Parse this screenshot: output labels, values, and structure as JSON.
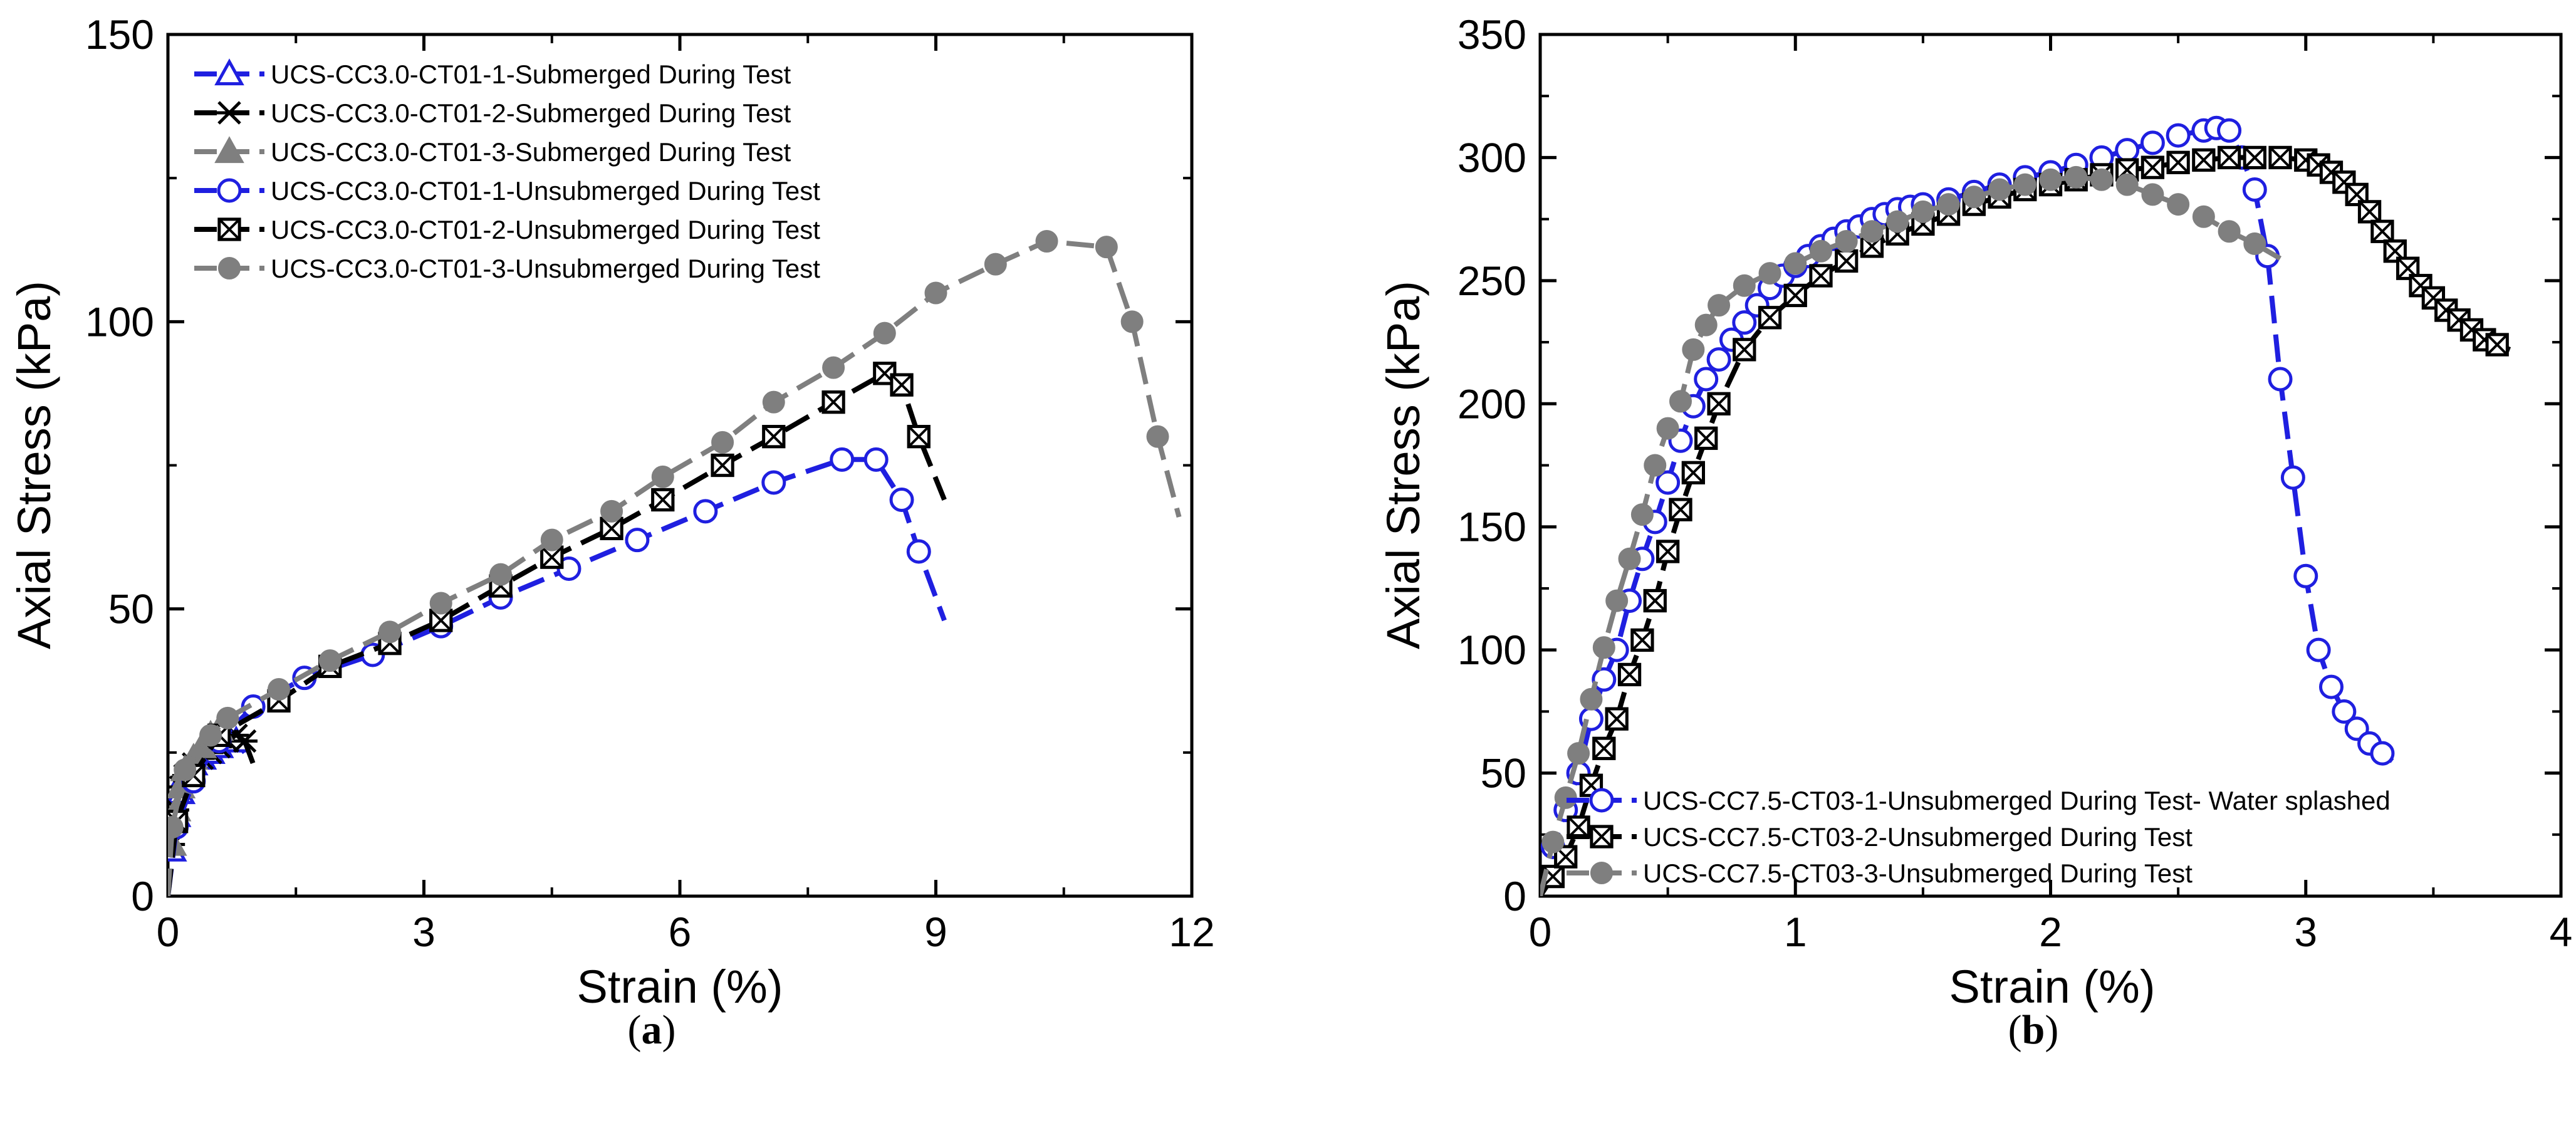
{
  "chart_data": [
    {
      "id": "a",
      "type": "line",
      "caption": "a",
      "xlabel": "Strain (%)",
      "ylabel": "Axial Stress (kPa)",
      "xlim": [
        0,
        12
      ],
      "ylim": [
        0,
        150
      ],
      "xticks": [
        0,
        3,
        6,
        9,
        12
      ],
      "yticks": [
        0,
        50,
        100,
        150
      ],
      "xtick_labels": [
        "0",
        "3",
        "6",
        "9",
        "12"
      ],
      "ytick_labels": [
        "0",
        "50",
        "100",
        "150"
      ],
      "legend_position": "top-left",
      "series": [
        {
          "name": "UCS-CC3.0-CT01-1-Submerged During Test",
          "color": "#1f1fe0",
          "dash": "long",
          "marker": "triangle-open",
          "x": [
            0,
            0.05,
            0.1,
            0.15,
            0.2,
            0.3,
            0.4,
            0.5,
            0.6,
            0.7,
            0.8,
            0.9
          ],
          "y": [
            0,
            8,
            14,
            18,
            21,
            23,
            24,
            25,
            26,
            27,
            27,
            25
          ]
        },
        {
          "name": "UCS-CC3.0-CT01-2-Submerged During Test",
          "color": "#000000",
          "dash": "long",
          "marker": "asterisk",
          "x": [
            0,
            0.05,
            0.1,
            0.15,
            0.2,
            0.3,
            0.4,
            0.5,
            0.6,
            0.7,
            0.8,
            0.9,
            1.0
          ],
          "y": [
            0,
            9,
            15,
            19,
            21,
            23,
            24,
            25,
            26,
            27,
            28,
            27,
            23
          ]
        },
        {
          "name": "UCS-CC3.0-CT01-3-Submerged During Test",
          "color": "#7f7f7f",
          "dash": "long",
          "marker": "triangle-filled",
          "x": [
            0,
            0.05,
            0.1,
            0.15,
            0.2,
            0.3,
            0.4,
            0.5,
            0.6,
            0.7
          ],
          "y": [
            0,
            9,
            15,
            19,
            22,
            24,
            26,
            28,
            29,
            28
          ]
        },
        {
          "name": "UCS-CC3.0-CT01-1-Unsubmerged During Test",
          "color": "#1f1fe0",
          "dash": "long",
          "marker": "circle-open",
          "x": [
            0,
            0.1,
            0.3,
            0.6,
            1.0,
            1.6,
            2.4,
            3.2,
            3.9,
            4.7,
            5.5,
            6.3,
            7.1,
            7.9,
            8.3,
            8.6,
            8.8,
            9.1
          ],
          "y": [
            0,
            12,
            20,
            27,
            33,
            38,
            42,
            47,
            52,
            57,
            62,
            67,
            72,
            76,
            76,
            69,
            60,
            48
          ]
        },
        {
          "name": "UCS-CC3.0-CT01-2-Unsubmerged During Test",
          "color": "#000000",
          "dash": "long",
          "marker": "box-x",
          "x": [
            0,
            0.1,
            0.3,
            0.6,
            1.3,
            1.9,
            2.6,
            3.2,
            3.9,
            4.5,
            5.2,
            5.8,
            6.5,
            7.1,
            7.8,
            8.4,
            8.6,
            8.8,
            9.1
          ],
          "y": [
            0,
            13,
            21,
            28,
            34,
            40,
            44,
            48,
            54,
            59,
            64,
            69,
            75,
            80,
            86,
            91,
            89,
            80,
            69
          ]
        },
        {
          "name": "UCS-CC3.0-CT01-3-Unsubmerged During Test",
          "color": "#7f7f7f",
          "dash": "long",
          "marker": "circle-filled",
          "x": [
            0,
            0.05,
            0.2,
            0.5,
            0.7,
            1.3,
            1.9,
            2.6,
            3.2,
            3.9,
            4.5,
            5.2,
            5.8,
            6.5,
            7.1,
            7.8,
            8.4,
            9.0,
            9.7,
            10.3,
            11.0,
            11.3,
            11.6,
            11.85
          ],
          "y": [
            0,
            12,
            22,
            28,
            31,
            36,
            41,
            46,
            51,
            56,
            62,
            67,
            73,
            79,
            86,
            92,
            98,
            105,
            110,
            114,
            113,
            100,
            80,
            66
          ]
        }
      ]
    },
    {
      "id": "b",
      "type": "line",
      "caption": "b",
      "xlabel": "Strain (%)",
      "ylabel": "Axial Stress (kPa)",
      "xlim": [
        0,
        4
      ],
      "ylim": [
        0,
        350
      ],
      "xticks": [
        0,
        1,
        2,
        3,
        4
      ],
      "yticks": [
        0,
        50,
        100,
        150,
        200,
        250,
        300,
        350
      ],
      "xtick_labels": [
        "0",
        "1",
        "2",
        "3",
        "4"
      ],
      "ytick_labels": [
        "0",
        "50",
        "100",
        "150",
        "200",
        "250",
        "300",
        "350"
      ],
      "legend_position": "bottom-right",
      "series": [
        {
          "name": "UCS-CC7.5-CT03-1-Unsubmerged During Test- Water splashed",
          "color": "#1f1fe0",
          "dash": "long",
          "marker": "circle-open",
          "x": [
            0,
            0.05,
            0.1,
            0.15,
            0.2,
            0.25,
            0.3,
            0.35,
            0.4,
            0.45,
            0.5,
            0.55,
            0.6,
            0.65,
            0.7,
            0.75,
            0.8,
            0.85,
            0.9,
            0.95,
            1.0,
            1.05,
            1.1,
            1.15,
            1.2,
            1.25,
            1.3,
            1.35,
            1.4,
            1.45,
            1.5,
            1.6,
            1.7,
            1.8,
            1.9,
            2.0,
            2.1,
            2.2,
            2.3,
            2.4,
            2.5,
            2.6,
            2.65,
            2.7,
            2.75,
            2.8,
            2.85,
            2.9,
            2.95,
            3.0,
            3.05,
            3.1,
            3.15,
            3.2,
            3.25,
            3.3,
            3.35
          ],
          "y": [
            0,
            20,
            35,
            50,
            72,
            88,
            100,
            120,
            137,
            152,
            168,
            185,
            199,
            210,
            218,
            226,
            233,
            240,
            247,
            252,
            256,
            260,
            264,
            267,
            270,
            272,
            275,
            277,
            279,
            280,
            281,
            283,
            286,
            289,
            292,
            294,
            297,
            300,
            303,
            306,
            309,
            311,
            312,
            311,
            300,
            287,
            260,
            210,
            170,
            130,
            100,
            85,
            75,
            68,
            62,
            58,
            54
          ]
        },
        {
          "name": "UCS-CC7.5-CT03-2-Unsubmerged During Test",
          "color": "#000000",
          "dash": "long",
          "marker": "box-x",
          "x": [
            0,
            0.05,
            0.1,
            0.15,
            0.2,
            0.25,
            0.3,
            0.35,
            0.4,
            0.45,
            0.5,
            0.55,
            0.6,
            0.65,
            0.7,
            0.8,
            0.9,
            1.0,
            1.1,
            1.2,
            1.3,
            1.4,
            1.5,
            1.6,
            1.7,
            1.8,
            1.9,
            2.0,
            2.1,
            2.2,
            2.3,
            2.4,
            2.5,
            2.6,
            2.7,
            2.8,
            2.9,
            3.0,
            3.05,
            3.1,
            3.15,
            3.2,
            3.25,
            3.3,
            3.35,
            3.4,
            3.45,
            3.5,
            3.55,
            3.6,
            3.65,
            3.7,
            3.75,
            3.8
          ],
          "y": [
            0,
            8,
            16,
            28,
            45,
            60,
            72,
            90,
            104,
            120,
            140,
            157,
            172,
            186,
            200,
            222,
            235,
            244,
            252,
            258,
            264,
            269,
            273,
            277,
            281,
            284,
            287,
            289,
            291,
            293,
            295,
            296,
            298,
            299,
            300,
            300,
            300,
            299,
            297,
            294,
            290,
            285,
            278,
            270,
            262,
            255,
            248,
            243,
            238,
            234,
            230,
            226,
            224,
            222
          ]
        },
        {
          "name": "UCS-CC7.5-CT03-3-Unsubmerged During Test",
          "color": "#7f7f7f",
          "dash": "long",
          "marker": "circle-filled",
          "x": [
            0,
            0.05,
            0.1,
            0.15,
            0.2,
            0.25,
            0.3,
            0.35,
            0.4,
            0.45,
            0.5,
            0.55,
            0.6,
            0.65,
            0.7,
            0.8,
            0.9,
            1.0,
            1.1,
            1.2,
            1.3,
            1.4,
            1.5,
            1.6,
            1.7,
            1.8,
            1.9,
            2.0,
            2.1,
            2.2,
            2.3,
            2.4,
            2.5,
            2.6,
            2.7,
            2.8,
            2.9
          ],
          "y": [
            0,
            22,
            40,
            58,
            80,
            101,
            120,
            137,
            155,
            175,
            190,
            201,
            222,
            232,
            240,
            248,
            253,
            257,
            262,
            266,
            270,
            274,
            278,
            281,
            284,
            287,
            289,
            291,
            292,
            291,
            289,
            285,
            281,
            276,
            270,
            265,
            259
          ]
        }
      ]
    }
  ]
}
